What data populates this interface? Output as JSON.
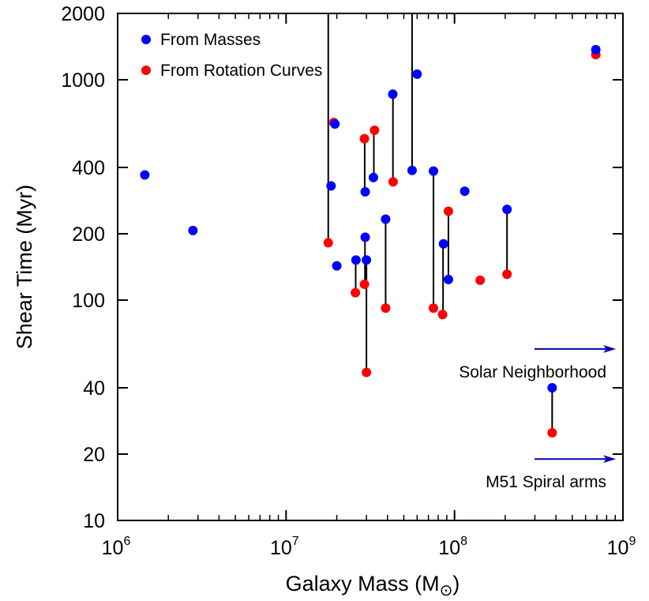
{
  "chart_data": {
    "type": "scatter",
    "xlabel": "Galaxy Mass (M",
    "xlabel_symbol": "⊙",
    "xlabel_suffix": ")",
    "ylabel": "Shear Time (Myr)",
    "xscale": "log",
    "yscale": "log",
    "xlim": [
      1000000,
      1000000000
    ],
    "ylim": [
      10,
      2000
    ],
    "x_ticks": [
      {
        "base": "10",
        "exp": "6"
      },
      {
        "base": "10",
        "exp": "7"
      },
      {
        "base": "10",
        "exp": "8"
      },
      {
        "base": "10",
        "exp": "9"
      }
    ],
    "y_ticks": [
      "10",
      "20",
      "40",
      "100",
      "200",
      "400",
      "1000",
      "2000"
    ],
    "y_tick_values": [
      10,
      20,
      40,
      100,
      200,
      400,
      1000,
      2000
    ],
    "legend_position": "top-left",
    "colors": {
      "masses": "#0000ff",
      "rotation": "#ff0000",
      "annotation": "#0000b0"
    },
    "series": [
      {
        "name": "From Masses",
        "color": "#0000ff",
        "points": [
          {
            "x": 1450000,
            "y": 370
          },
          {
            "x": 2800000,
            "y": 207
          },
          {
            "x": 18500000,
            "y": 330
          },
          {
            "x": 19500000,
            "y": 630
          },
          {
            "x": 20000000,
            "y": 143
          },
          {
            "x": 26000000,
            "y": 152
          },
          {
            "x": 29500000,
            "y": 310
          },
          {
            "x": 29500000,
            "y": 193
          },
          {
            "x": 30000000,
            "y": 152
          },
          {
            "x": 33000000,
            "y": 360
          },
          {
            "x": 39000000,
            "y": 233
          },
          {
            "x": 43000000,
            "y": 860
          },
          {
            "x": 56000000,
            "y": 388
          },
          {
            "x": 60000000,
            "y": 1060
          },
          {
            "x": 75000000,
            "y": 385
          },
          {
            "x": 86000000,
            "y": 180
          },
          {
            "x": 92000000,
            "y": 124
          },
          {
            "x": 115000000,
            "y": 312
          },
          {
            "x": 205000000,
            "y": 258
          },
          {
            "x": 380000000,
            "y": 40
          },
          {
            "x": 690000000,
            "y": 1370
          }
        ]
      },
      {
        "name": "From Rotation Curves",
        "color": "#ff0000",
        "points": [
          {
            "x": 17800000,
            "y": 182
          },
          {
            "x": 19200000,
            "y": 640
          },
          {
            "x": 25800000,
            "y": 108
          },
          {
            "x": 29200000,
            "y": 540
          },
          {
            "x": 29200000,
            "y": 118
          },
          {
            "x": 30000000,
            "y": 47
          },
          {
            "x": 33500000,
            "y": 590
          },
          {
            "x": 39000000,
            "y": 92
          },
          {
            "x": 43200000,
            "y": 344
          },
          {
            "x": 75000000,
            "y": 92
          },
          {
            "x": 85000000,
            "y": 86
          },
          {
            "x": 92000000,
            "y": 253
          },
          {
            "x": 142000000,
            "y": 123
          },
          {
            "x": 205000000,
            "y": 131
          },
          {
            "x": 380000000,
            "y": 25
          },
          {
            "x": 690000000,
            "y": 1300
          }
        ]
      }
    ],
    "connectors": [
      {
        "x": 17800000,
        "y1": 182,
        "y2": 2000
      },
      {
        "x": 56000000,
        "y1": 388,
        "y2": 2000
      },
      {
        "x": 19400000,
        "y1": 630,
        "y2": 640
      },
      {
        "x": 29300000,
        "y1": 310,
        "y2": 540
      },
      {
        "x": 33200000,
        "y1": 360,
        "y2": 590
      },
      {
        "x": 25900000,
        "y1": 108,
        "y2": 152
      },
      {
        "x": 29400000,
        "y1": 118,
        "y2": 193
      },
      {
        "x": 30000000,
        "y1": 47,
        "y2": 152
      },
      {
        "x": 39000000,
        "y1": 92,
        "y2": 233
      },
      {
        "x": 43100000,
        "y1": 344,
        "y2": 860
      },
      {
        "x": 75000000,
        "y1": 92,
        "y2": 385
      },
      {
        "x": 85500000,
        "y1": 86,
        "y2": 180
      },
      {
        "x": 92000000,
        "y1": 124,
        "y2": 253
      },
      {
        "x": 205000000,
        "y1": 131,
        "y2": 258
      },
      {
        "x": 380000000,
        "y1": 25,
        "y2": 40
      }
    ],
    "annotations": [
      {
        "label": "Solar Neighborhood",
        "y": 60
      },
      {
        "label": "M51 Spiral arms",
        "y": 19
      }
    ]
  }
}
